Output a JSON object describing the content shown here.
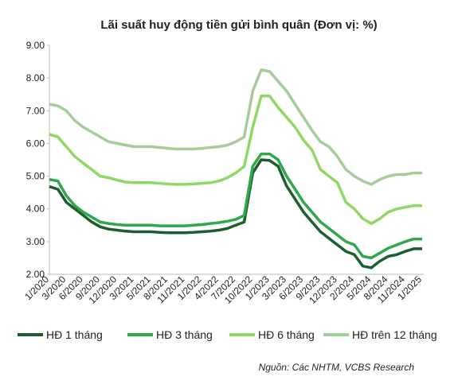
{
  "chart_data": {
    "type": "line",
    "title": "Lãi suất huy động tiền gửi bình quân (Đơn vị: %)",
    "source": "Nguồn: Các NHTM, VCBS Research",
    "categories": [
      "1/2020",
      null,
      "3/2020",
      null,
      "6/2020",
      null,
      "9/2020",
      null,
      "12/2020",
      null,
      "3/2021",
      null,
      "5/2021",
      null,
      "8/2021",
      null,
      "11/2021",
      null,
      "1/2022",
      null,
      "4/2022",
      null,
      "7/2022",
      null,
      "10/2022",
      null,
      "1/2023",
      null,
      "3/2023",
      null,
      "6/2023",
      null,
      "9/2023",
      null,
      "12/2023",
      null,
      "2/2024",
      null,
      "5/2024",
      null,
      "8/2024",
      null,
      "11/2024",
      null,
      "1/2025"
    ],
    "series": [
      {
        "name": "HĐ 1 tháng",
        "color": "#1d5e2f",
        "values": [
          4.68,
          4.6,
          4.2,
          4.0,
          3.8,
          3.6,
          3.45,
          3.38,
          3.35,
          3.32,
          3.3,
          3.3,
          3.3,
          3.28,
          3.27,
          3.27,
          3.27,
          3.28,
          3.3,
          3.32,
          3.35,
          3.4,
          3.5,
          3.6,
          5.1,
          5.5,
          5.48,
          5.3,
          4.7,
          4.3,
          3.9,
          3.6,
          3.3,
          3.1,
          2.9,
          2.7,
          2.6,
          2.25,
          2.2,
          2.4,
          2.55,
          2.6,
          2.7,
          2.78,
          2.78
        ]
      },
      {
        "name": "HĐ 3 tháng",
        "color": "#2ea84a",
        "values": [
          4.9,
          4.85,
          4.4,
          4.1,
          3.9,
          3.75,
          3.6,
          3.55,
          3.52,
          3.5,
          3.5,
          3.5,
          3.5,
          3.48,
          3.48,
          3.48,
          3.48,
          3.5,
          3.52,
          3.55,
          3.58,
          3.62,
          3.68,
          3.8,
          5.3,
          5.68,
          5.68,
          5.5,
          5.0,
          4.6,
          4.2,
          3.9,
          3.6,
          3.4,
          3.2,
          3.0,
          2.9,
          2.55,
          2.5,
          2.65,
          2.8,
          2.9,
          3.0,
          3.08,
          3.08
        ]
      },
      {
        "name": "HĐ 6 tháng",
        "color": "#8fd864",
        "values": [
          6.28,
          6.2,
          5.9,
          5.6,
          5.4,
          5.2,
          5.0,
          4.95,
          4.88,
          4.82,
          4.8,
          4.8,
          4.8,
          4.78,
          4.76,
          4.75,
          4.75,
          4.76,
          4.78,
          4.8,
          4.85,
          4.95,
          5.1,
          5.3,
          6.5,
          7.45,
          7.45,
          7.1,
          6.8,
          6.5,
          6.1,
          5.8,
          5.2,
          5.0,
          4.8,
          4.2,
          4.0,
          3.7,
          3.55,
          3.7,
          3.9,
          4.0,
          4.05,
          4.1,
          4.1
        ]
      },
      {
        "name": "HĐ trên 12 tháng",
        "color": "#a6cc9c",
        "values": [
          7.2,
          7.15,
          7.0,
          6.7,
          6.5,
          6.35,
          6.2,
          6.05,
          6.0,
          5.95,
          5.9,
          5.9,
          5.9,
          5.88,
          5.85,
          5.83,
          5.83,
          5.83,
          5.85,
          5.88,
          5.9,
          5.95,
          6.05,
          6.2,
          7.6,
          8.25,
          8.2,
          7.9,
          7.6,
          7.2,
          6.8,
          6.4,
          6.05,
          5.9,
          5.6,
          5.2,
          5.0,
          4.85,
          4.75,
          4.9,
          5.0,
          5.05,
          5.05,
          5.1,
          5.1
        ]
      }
    ],
    "ylim": [
      2,
      9
    ],
    "yticks": [
      {
        "value": 2,
        "label": "2.00"
      },
      {
        "value": 3,
        "label": "3.00"
      },
      {
        "value": 4,
        "label": "4.00"
      },
      {
        "value": 5,
        "label": "5.00"
      },
      {
        "value": 6,
        "label": "6.00"
      },
      {
        "value": 7,
        "label": "7.00"
      },
      {
        "value": 8,
        "label": "8.00"
      },
      {
        "value": 9,
        "label": "9.00"
      }
    ],
    "grid": false
  }
}
